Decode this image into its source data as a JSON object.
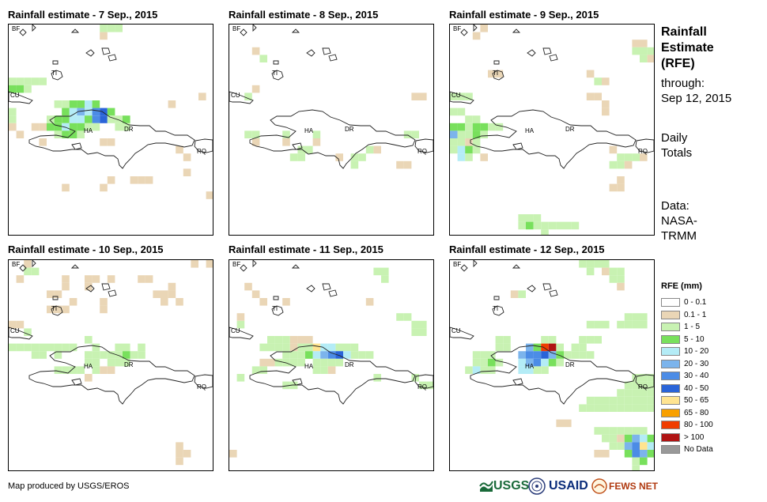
{
  "panels": [
    {
      "title": "Rainfall estimate - 7 Sep., 2015"
    },
    {
      "title": "Rainfall estimate - 8 Sep., 2015"
    },
    {
      "title": "Rainfall estimate - 9 Sep., 2015"
    },
    {
      "title": "Rainfall estimate - 10 Sep., 2015"
    },
    {
      "title": "Rainfall estimate - 11 Sep., 2015"
    },
    {
      "title": "Rainfall estimate - 12 Sep., 2015"
    }
  ],
  "map_labels": {
    "bf": "BF",
    "cu": "CU",
    "ti": "TI",
    "ha": "HA",
    "dr": "DR",
    "rq": "RQ"
  },
  "side": {
    "title": "Rainfall Estimate (RFE)",
    "title_lines": [
      "Rainfall",
      "Estimate",
      "(RFE)"
    ],
    "through_label": "through:",
    "through_date": "Sep 12, 2015",
    "daily_lines": [
      "Daily",
      "Totals"
    ],
    "data_lines": [
      "Data:",
      "NASA-",
      "TRMM"
    ]
  },
  "legend": {
    "title": "RFE (mm)",
    "items": [
      {
        "label": "0 - 0.1",
        "color": "#ffffff"
      },
      {
        "label": "0.1 - 1",
        "color": "#ead6b6"
      },
      {
        "label": "1 - 5",
        "color": "#c8f2b2"
      },
      {
        "label": "5 - 10",
        "color": "#78e05c"
      },
      {
        "label": "10 - 20",
        "color": "#b4ecf6"
      },
      {
        "label": "20 - 30",
        "color": "#7cb4ec"
      },
      {
        "label": "30 - 40",
        "color": "#4c8ce6"
      },
      {
        "label": "40 - 50",
        "color": "#2a64d8"
      },
      {
        "label": "50 - 65",
        "color": "#ffe490"
      },
      {
        "label": "65 - 80",
        "color": "#f8a000"
      },
      {
        "label": "80 - 100",
        "color": "#f03c00"
      },
      {
        "label": "> 100",
        "color": "#b01414"
      },
      {
        "label": "No Data",
        "color": "#999999"
      }
    ]
  },
  "footer": {
    "credit": "Map produced by USGS/EROS",
    "logos": [
      "USGS",
      "USAID",
      "FEWS NET"
    ]
  }
}
